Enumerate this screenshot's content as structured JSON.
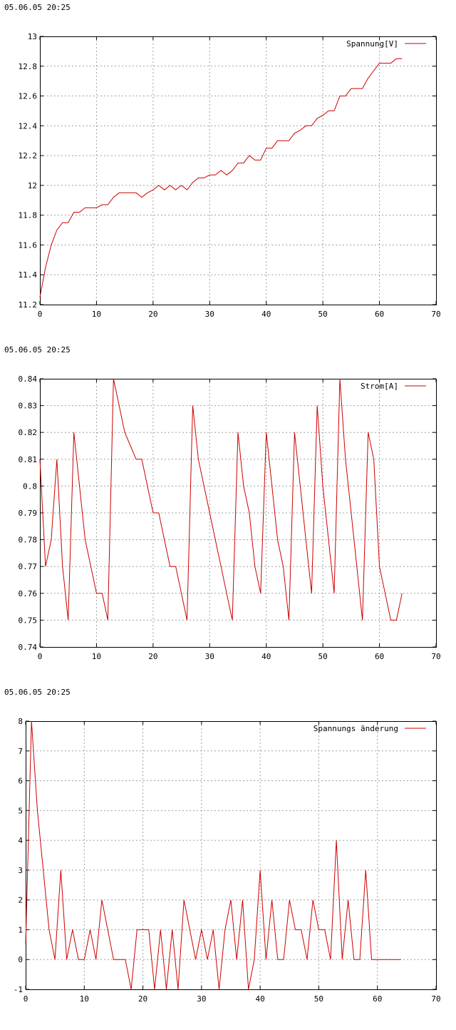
{
  "chart_data": [
    {
      "type": "line",
      "timestamp": "05.06.05 20:25",
      "title": "",
      "xlabel": "",
      "ylabel": "",
      "xlim": [
        0,
        70
      ],
      "ylim": [
        11.2,
        13
      ],
      "x_ticks": [
        "0",
        "10",
        "20",
        "30",
        "40",
        "50",
        "60",
        "70"
      ],
      "y_ticks": [
        "11.2",
        "11.4",
        "11.6",
        "11.8",
        "12",
        "12.2",
        "12.4",
        "12.6",
        "12.8",
        "13"
      ],
      "grid": true,
      "legend_position": "top-right",
      "series": [
        {
          "name": "Spannung[V]",
          "color": "#cc0000",
          "x": [
            0,
            1,
            2,
            3,
            4,
            5,
            6,
            7,
            8,
            9,
            10,
            11,
            12,
            13,
            14,
            15,
            16,
            17,
            18,
            19,
            20,
            21,
            22,
            23,
            24,
            25,
            26,
            27,
            28,
            29,
            30,
            31,
            32,
            33,
            34,
            35,
            36,
            37,
            38,
            39,
            40,
            41,
            42,
            43,
            44,
            45,
            46,
            47,
            48,
            49,
            50,
            51,
            52,
            53,
            54,
            55,
            56,
            57,
            58,
            59,
            60,
            61,
            62,
            63,
            64
          ],
          "values": [
            11.25,
            11.45,
            11.6,
            11.7,
            11.75,
            11.75,
            11.82,
            11.82,
            11.85,
            11.85,
            11.85,
            11.87,
            11.87,
            11.92,
            11.95,
            11.95,
            11.95,
            11.95,
            11.92,
            11.95,
            11.97,
            12.0,
            11.97,
            12.0,
            11.97,
            12.0,
            11.97,
            12.02,
            12.05,
            12.05,
            12.07,
            12.07,
            12.1,
            12.07,
            12.1,
            12.15,
            12.15,
            12.2,
            12.17,
            12.17,
            12.25,
            12.25,
            12.3,
            12.3,
            12.3,
            12.35,
            12.37,
            12.4,
            12.4,
            12.45,
            12.47,
            12.5,
            12.5,
            12.6,
            12.6,
            12.65,
            12.65,
            12.65,
            12.72,
            12.77,
            12.82,
            12.82,
            12.82,
            12.85,
            12.85
          ]
        }
      ]
    },
    {
      "type": "line",
      "timestamp": "05.06.05 20:25",
      "title": "",
      "xlabel": "",
      "ylabel": "",
      "xlim": [
        0,
        70
      ],
      "ylim": [
        0.74,
        0.84
      ],
      "x_ticks": [
        "0",
        "10",
        "20",
        "30",
        "40",
        "50",
        "60",
        "70"
      ],
      "y_ticks": [
        "0.74",
        "0.75",
        "0.76",
        "0.77",
        "0.78",
        "0.79",
        "0.8",
        "0.81",
        "0.82",
        "0.83",
        "0.84"
      ],
      "grid": true,
      "legend_position": "top-right",
      "series": [
        {
          "name": "Strom[A]",
          "color": "#cc0000",
          "x": [
            0,
            1,
            2,
            3,
            4,
            5,
            6,
            7,
            8,
            9,
            10,
            11,
            12,
            13,
            14,
            15,
            16,
            17,
            18,
            19,
            20,
            21,
            22,
            23,
            24,
            25,
            26,
            27,
            28,
            29,
            30,
            31,
            32,
            33,
            34,
            35,
            36,
            37,
            38,
            39,
            40,
            41,
            42,
            43,
            44,
            45,
            46,
            47,
            48,
            49,
            50,
            51,
            52,
            53,
            54,
            55,
            56,
            57,
            58,
            59,
            60,
            61,
            62,
            63,
            64
          ],
          "values": [
            0.81,
            0.77,
            0.78,
            0.81,
            0.77,
            0.75,
            0.82,
            0.8,
            0.78,
            0.77,
            0.76,
            0.76,
            0.75,
            0.84,
            0.83,
            0.82,
            0.815,
            0.81,
            0.81,
            0.8,
            0.79,
            0.79,
            0.78,
            0.77,
            0.77,
            0.76,
            0.75,
            0.83,
            0.81,
            0.8,
            0.79,
            0.78,
            0.77,
            0.76,
            0.75,
            0.82,
            0.8,
            0.79,
            0.77,
            0.76,
            0.82,
            0.8,
            0.78,
            0.77,
            0.75,
            0.82,
            0.8,
            0.78,
            0.76,
            0.83,
            0.8,
            0.78,
            0.76,
            0.84,
            0.81,
            0.79,
            0.77,
            0.75,
            0.82,
            0.81,
            0.77,
            0.76,
            0.75,
            0.75,
            0.76
          ]
        }
      ]
    },
    {
      "type": "line",
      "timestamp": "05.06.05 20:25",
      "title": "",
      "xlabel": "",
      "ylabel": "",
      "xlim": [
        0,
        70
      ],
      "ylim": [
        -1,
        8
      ],
      "x_ticks": [
        "0",
        "10",
        "20",
        "30",
        "40",
        "50",
        "60",
        "70"
      ],
      "y_ticks": [
        "-1",
        "0",
        "1",
        "2",
        "3",
        "4",
        "5",
        "6",
        "7",
        "8"
      ],
      "grid": true,
      "legend_position": "top-right",
      "series": [
        {
          "name": "Spannungs änderung",
          "color": "#cc0000",
          "x": [
            0,
            1,
            2,
            3,
            4,
            5,
            6,
            7,
            8,
            9,
            10,
            11,
            12,
            13,
            14,
            15,
            16,
            17,
            18,
            19,
            20,
            21,
            22,
            23,
            24,
            25,
            26,
            27,
            28,
            29,
            30,
            31,
            32,
            33,
            34,
            35,
            36,
            37,
            38,
            39,
            40,
            41,
            42,
            43,
            44,
            45,
            46,
            47,
            48,
            49,
            50,
            51,
            52,
            53,
            54,
            55,
            56,
            57,
            58,
            59,
            60,
            61,
            62,
            63,
            64
          ],
          "values": [
            0.5,
            8,
            5,
            3,
            1,
            0,
            3,
            0,
            1,
            0,
            0,
            1,
            0,
            2,
            1,
            0,
            0,
            0,
            -1,
            1,
            1,
            1,
            -1,
            1,
            -1,
            1,
            -1,
            2,
            1,
            0,
            1,
            0,
            1,
            -1,
            1,
            2,
            0,
            2,
            -1,
            0,
            3,
            0,
            2,
            0,
            0,
            2,
            1,
            1,
            0,
            2,
            1,
            1,
            0,
            4,
            0,
            2,
            0,
            0,
            3,
            0,
            0,
            0,
            0,
            0,
            0
          ]
        }
      ]
    }
  ]
}
